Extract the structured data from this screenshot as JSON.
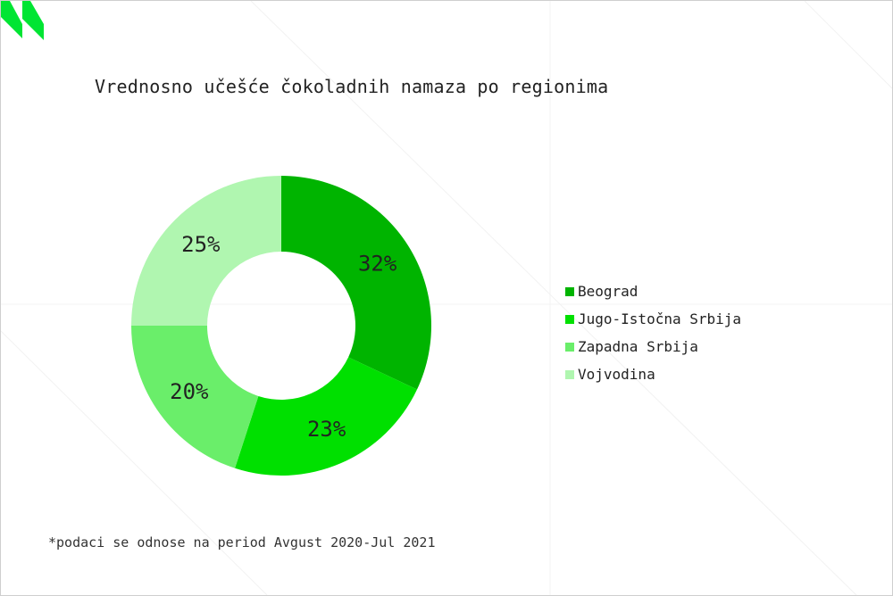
{
  "chart_data": {
    "type": "pie",
    "donut": true,
    "title": "Vrednosno učešće čokoladnih namaza po regionima",
    "categories": [
      "Beograd",
      "Jugo-Istočna Srbija",
      "Zapadna Srbija",
      "Vojvodina"
    ],
    "values": [
      32,
      23,
      20,
      25
    ],
    "labels": [
      "32%",
      "23%",
      "20%",
      "25%"
    ],
    "colors": [
      "#00b400",
      "#00e000",
      "#6aee6a",
      "#b0f6b0"
    ],
    "legend_position": "right"
  },
  "footnote": "*podaci se odnose na period Avgust 2020-Jul 2021",
  "brand_color": "#00e533"
}
